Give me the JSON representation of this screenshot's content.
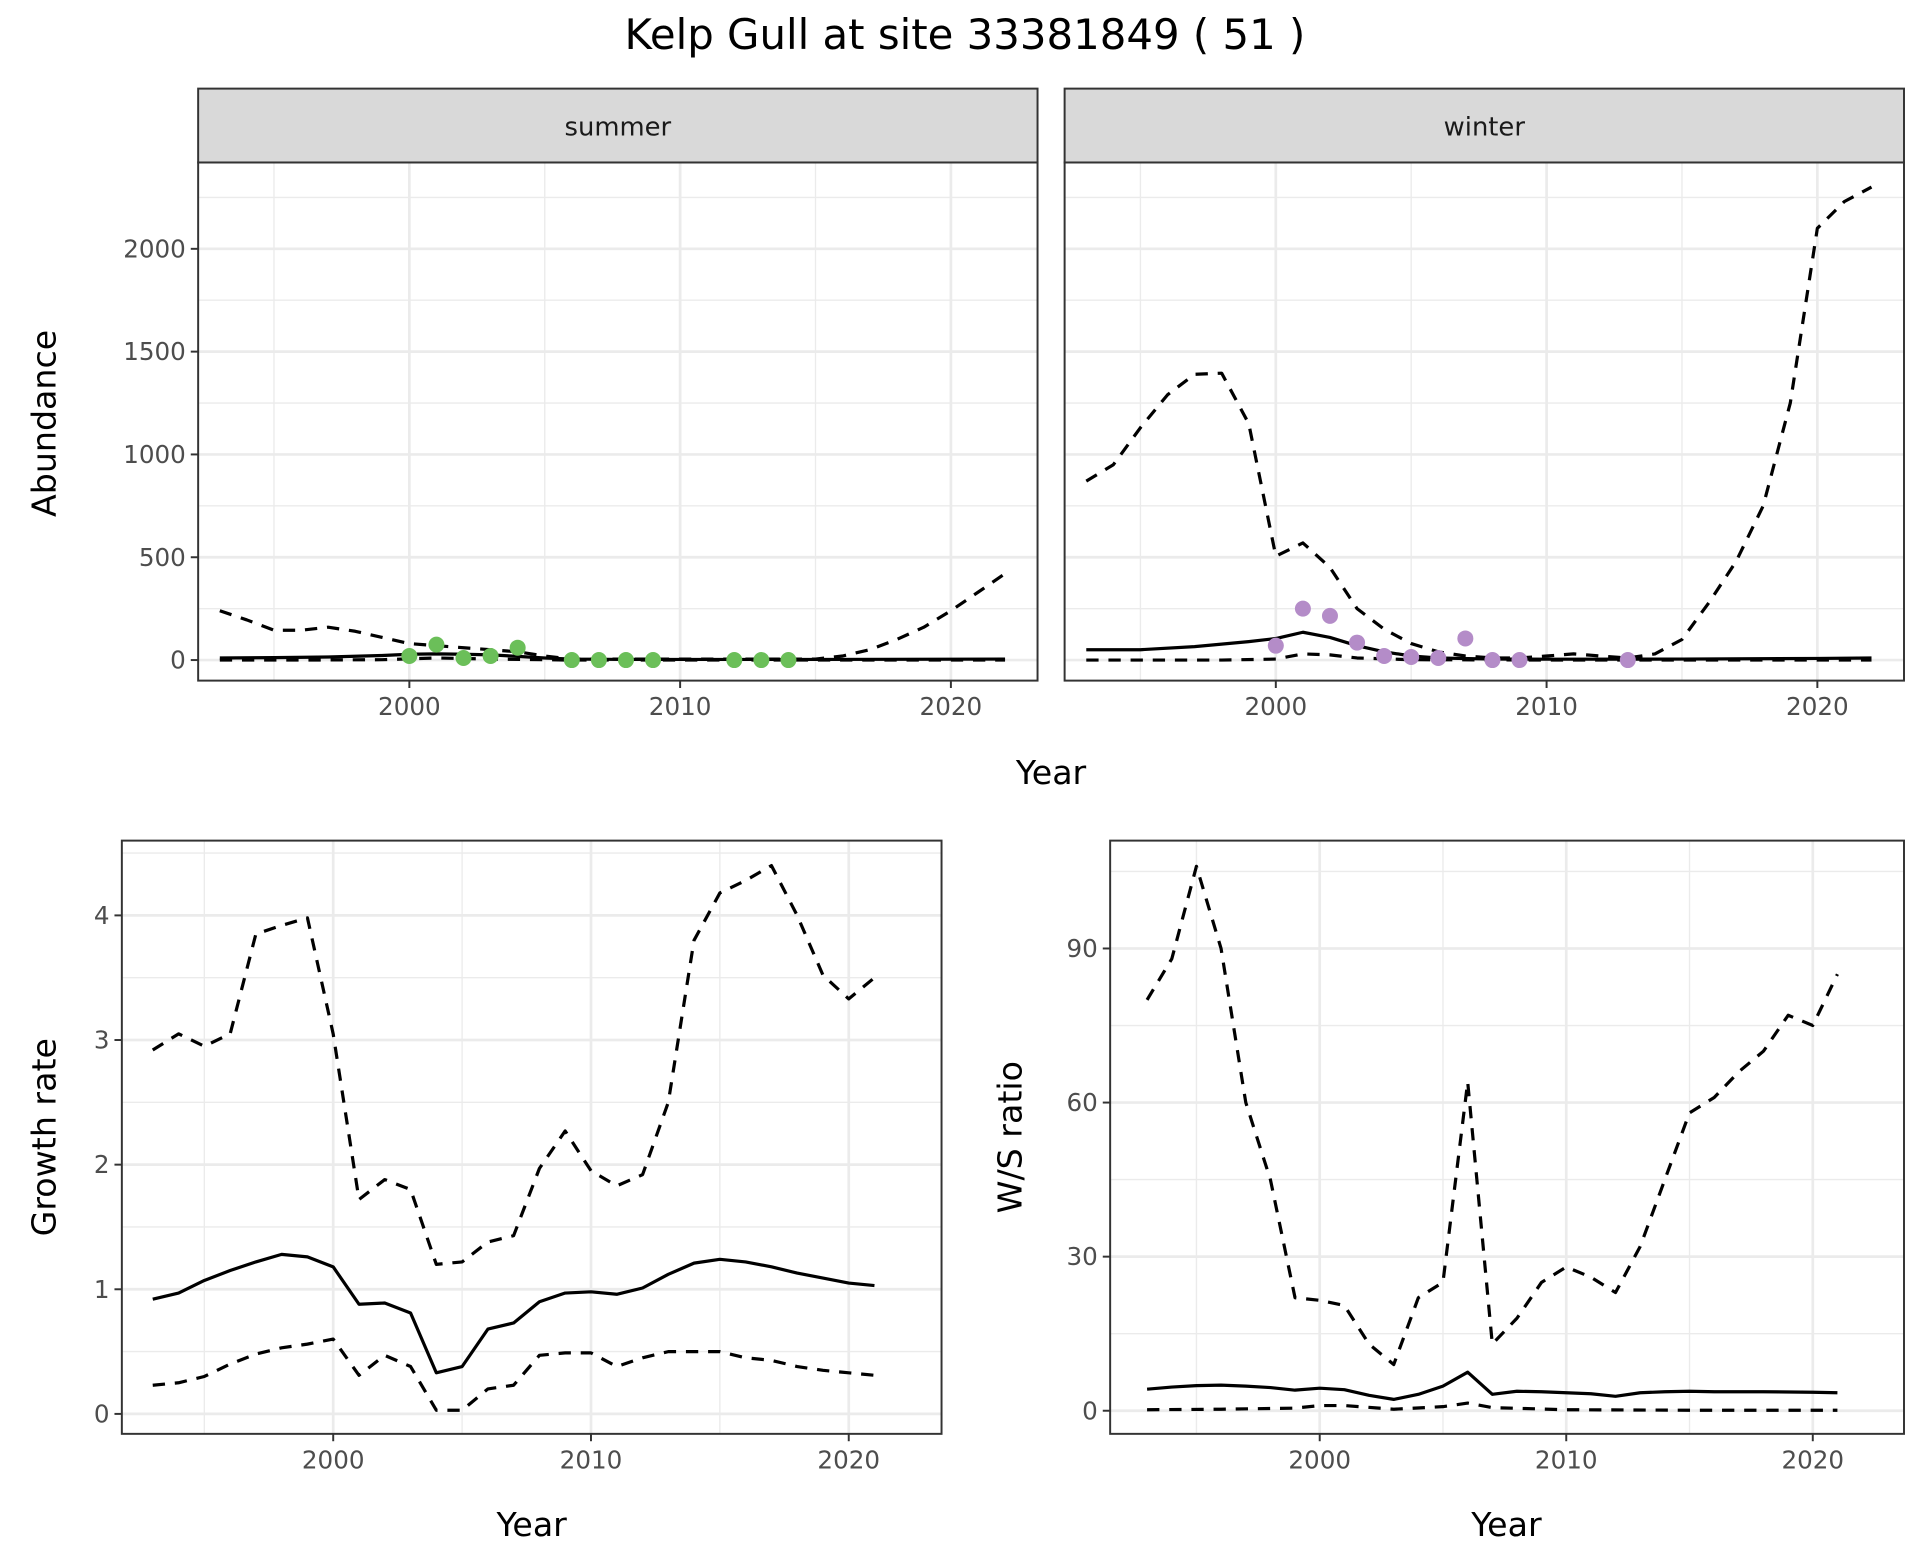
{
  "title": "Kelp Gull at site 33381849 ( 51 )",
  "colors": {
    "summer_points": "#6bbf59",
    "winter_points": "#b48cc8",
    "lines": "#000000",
    "strip": "#d9d9d9",
    "grid": "#ebebeb"
  },
  "chart_data": [
    {
      "id": "summer",
      "type": "line",
      "strip": "summer",
      "xlabel": "Year",
      "ylabel": "Abundance",
      "xticks": [
        2000,
        2010,
        2020
      ],
      "yticks": [
        0,
        500,
        1000,
        1500,
        2000
      ],
      "xlim": [
        1992.2,
        2023.2
      ],
      "ylim": [
        -100,
        2420
      ],
      "points": {
        "x": [
          2000,
          2001,
          2002,
          2003,
          2004,
          2006,
          2007,
          2008,
          2009,
          2012,
          2013,
          2014
        ],
        "y": [
          20,
          75,
          10,
          20,
          60,
          0,
          0,
          0,
          0,
          0,
          0,
          0
        ]
      },
      "series": [
        {
          "name": "estimate",
          "style": "solid",
          "x": [
            1993,
            1995,
            1997,
            1999,
            2000,
            2001,
            2002,
            2003,
            2004,
            2005,
            2006,
            2008,
            2010,
            2015,
            2020,
            2022
          ],
          "y": [
            10,
            12,
            15,
            22,
            28,
            30,
            28,
            25,
            18,
            10,
            5,
            3,
            3,
            3,
            4,
            5
          ]
        },
        {
          "name": "upper",
          "style": "dashed",
          "x": [
            1993,
            1994,
            1995,
            1996,
            1997,
            1998,
            1999,
            2000,
            2001,
            2002,
            2003,
            2004,
            2005,
            2006,
            2010,
            2015,
            2016,
            2017,
            2018,
            2019,
            2020,
            2021,
            2022
          ],
          "y": [
            240,
            195,
            145,
            145,
            160,
            140,
            110,
            80,
            70,
            60,
            50,
            40,
            20,
            5,
            5,
            5,
            20,
            50,
            100,
            160,
            240,
            330,
            420
          ]
        },
        {
          "name": "lower",
          "style": "dashed",
          "x": [
            1993,
            1996,
            1999,
            2001,
            2003,
            2006,
            2010,
            2022
          ],
          "y": [
            0,
            0,
            2,
            10,
            5,
            0,
            0,
            0
          ]
        }
      ]
    },
    {
      "id": "winter",
      "type": "line",
      "strip": "winter",
      "xlabel": "Year",
      "ylabel": "Abundance",
      "xticks": [
        2000,
        2010,
        2020
      ],
      "yticks": [
        0,
        500,
        1000,
        1500,
        2000
      ],
      "xlim": [
        1992.2,
        2023.2
      ],
      "ylim": [
        -100,
        2420
      ],
      "points": {
        "x": [
          2000,
          2001,
          2002,
          2003,
          2004,
          2005,
          2006,
          2007,
          2008,
          2009,
          2013
        ],
        "y": [
          70,
          250,
          215,
          85,
          20,
          15,
          10,
          105,
          0,
          0,
          0
        ]
      },
      "series": [
        {
          "name": "estimate",
          "style": "solid",
          "x": [
            1993,
            1995,
            1997,
            1999,
            2000,
            2001,
            2002,
            2003,
            2004,
            2005,
            2006,
            2008,
            2010,
            2015,
            2020,
            2022
          ],
          "y": [
            50,
            50,
            65,
            90,
            105,
            135,
            110,
            70,
            40,
            20,
            10,
            5,
            4,
            5,
            8,
            10
          ]
        },
        {
          "name": "upper",
          "style": "dashed",
          "x": [
            1993,
            1994,
            1995,
            1996,
            1997,
            1998,
            1999,
            2000,
            2001,
            2002,
            2003,
            2004,
            2005,
            2006,
            2007,
            2008,
            2009,
            2010,
            2011,
            2012,
            2013,
            2014,
            2015,
            2016,
            2017,
            2018,
            2019,
            2020,
            2021,
            2022
          ],
          "y": [
            870,
            950,
            1130,
            1290,
            1390,
            1395,
            1150,
            505,
            570,
            450,
            250,
            150,
            80,
            40,
            20,
            10,
            10,
            20,
            30,
            20,
            10,
            30,
            100,
            280,
            480,
            750,
            1250,
            2100,
            2230,
            2300
          ]
        },
        {
          "name": "lower",
          "style": "dashed",
          "x": [
            1993,
            1998,
            2000,
            2001,
            2002,
            2003,
            2005,
            2010,
            2022
          ],
          "y": [
            0,
            0,
            5,
            30,
            25,
            10,
            2,
            0,
            0
          ]
        }
      ]
    },
    {
      "id": "growth",
      "type": "line",
      "xlabel": "Year",
      "ylabel": "Growth rate",
      "xticks": [
        2000,
        2010,
        2020
      ],
      "yticks": [
        0,
        1,
        2,
        3,
        4
      ],
      "xlim": [
        1991.8,
        2023.6
      ],
      "ylim": [
        -0.16,
        4.6
      ],
      "series": [
        {
          "name": "estimate",
          "style": "solid",
          "x": [
            1993,
            1994,
            1995,
            1996,
            1997,
            1998,
            1999,
            2000,
            2001,
            2002,
            2003,
            2004,
            2005,
            2006,
            2007,
            2008,
            2009,
            2010,
            2011,
            2012,
            2013,
            2014,
            2015,
            2016,
            2017,
            2018,
            2019,
            2020,
            2021
          ],
          "y": [
            0.92,
            0.97,
            1.07,
            1.15,
            1.22,
            1.28,
            1.26,
            1.18,
            0.88,
            0.89,
            0.81,
            0.33,
            0.38,
            0.68,
            0.73,
            0.9,
            0.97,
            0.98,
            0.96,
            1.01,
            1.12,
            1.21,
            1.24,
            1.22,
            1.18,
            1.13,
            1.09,
            1.05,
            1.03
          ]
        },
        {
          "name": "upper",
          "style": "dashed",
          "x": [
            1993,
            1994,
            1995,
            1996,
            1997,
            1998,
            1999,
            2000,
            2001,
            2002,
            2003,
            2004,
            2005,
            2006,
            2007,
            2008,
            2009,
            2010,
            2011,
            2012,
            2013,
            2014,
            2015,
            2016,
            2017,
            2018,
            2019,
            2020,
            2021
          ],
          "y": [
            2.92,
            3.05,
            2.95,
            3.05,
            3.85,
            3.92,
            3.98,
            3.05,
            1.72,
            1.88,
            1.8,
            1.2,
            1.22,
            1.38,
            1.43,
            1.97,
            2.27,
            1.95,
            1.83,
            1.92,
            2.5,
            3.8,
            4.18,
            4.28,
            4.4,
            4.0,
            3.52,
            3.33,
            3.5
          ]
        },
        {
          "name": "lower",
          "style": "dashed",
          "x": [
            1993,
            1994,
            1995,
            1996,
            1997,
            1998,
            1999,
            2000,
            2001,
            2002,
            2003,
            2004,
            2005,
            2006,
            2007,
            2008,
            2009,
            2010,
            2011,
            2012,
            2013,
            2014,
            2015,
            2016,
            2017,
            2018,
            2019,
            2020,
            2021
          ],
          "y": [
            0.23,
            0.25,
            0.3,
            0.4,
            0.48,
            0.53,
            0.56,
            0.6,
            0.31,
            0.47,
            0.38,
            0.03,
            0.03,
            0.2,
            0.23,
            0.47,
            0.49,
            0.49,
            0.38,
            0.45,
            0.5,
            0.5,
            0.5,
            0.45,
            0.43,
            0.38,
            0.35,
            0.33,
            0.31
          ]
        }
      ]
    },
    {
      "id": "ratio",
      "type": "line",
      "xlabel": "Year",
      "ylabel": "W/S ratio",
      "xticks": [
        2000,
        2010,
        2020
      ],
      "yticks": [
        0,
        30,
        60,
        90
      ],
      "xlim": [
        1991.5,
        2023.7
      ],
      "ylim": [
        -4.5,
        111
      ],
      "series": [
        {
          "name": "estimate",
          "style": "solid",
          "x": [
            1993,
            1994,
            1995,
            1996,
            1997,
            1998,
            1999,
            2000,
            2001,
            2002,
            2003,
            2004,
            2005,
            2006,
            2007,
            2008,
            2009,
            2010,
            2011,
            2012,
            2013,
            2014,
            2015,
            2016,
            2018,
            2020,
            2021
          ],
          "y": [
            4.2,
            4.6,
            4.9,
            5.0,
            4.8,
            4.5,
            4.0,
            4.4,
            4.1,
            3.0,
            2.2,
            3.2,
            4.8,
            7.5,
            3.2,
            3.8,
            3.7,
            3.5,
            3.3,
            2.8,
            3.5,
            3.7,
            3.8,
            3.7,
            3.7,
            3.6,
            3.5
          ]
        },
        {
          "name": "upper",
          "style": "dashed",
          "x": [
            1993,
            1994,
            1995,
            1996,
            1997,
            1998,
            1999,
            2000,
            2001,
            2002,
            2003,
            2004,
            2005,
            2006,
            2007,
            2008,
            2009,
            2010,
            2011,
            2012,
            2013,
            2014,
            2015,
            2016,
            2017,
            2018,
            2019,
            2020,
            2021
          ],
          "y": [
            80,
            88,
            106,
            90,
            60,
            45,
            22,
            21.5,
            20.5,
            13,
            9,
            22,
            25,
            64,
            13,
            18,
            25,
            28,
            26,
            23,
            32,
            45,
            58,
            61,
            66,
            70,
            77,
            75,
            85
          ]
        },
        {
          "name": "lower",
          "style": "dashed",
          "x": [
            1993,
            1996,
            1999,
            2000,
            2001,
            2003,
            2005,
            2006,
            2007,
            2010,
            2015,
            2021
          ],
          "y": [
            0.2,
            0.3,
            0.5,
            1.0,
            1.0,
            0.3,
            0.8,
            1.5,
            0.6,
            0.2,
            0.1,
            0.1
          ]
        }
      ]
    }
  ]
}
